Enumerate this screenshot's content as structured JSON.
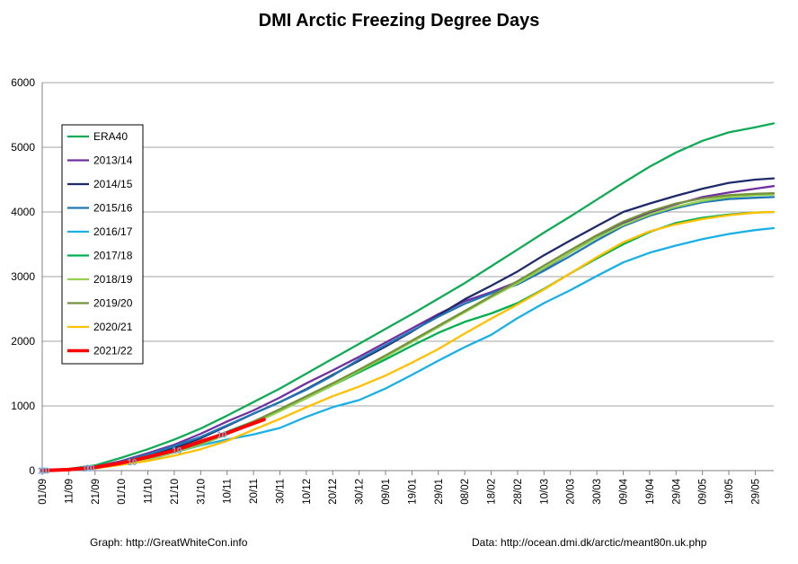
{
  "chart_data": {
    "type": "line",
    "title": "DMI Arctic Freezing Degree Days",
    "xlabel": "",
    "ylabel": "",
    "ylim": [
      0,
      6000
    ],
    "yticks": [
      0,
      1000,
      2000,
      3000,
      4000,
      5000,
      6000
    ],
    "xlim": [
      0,
      277
    ],
    "xtick_labels": [
      "01/09",
      "11/09",
      "21/09",
      "01/10",
      "11/10",
      "21/10",
      "31/10",
      "10/11",
      "20/11",
      "30/11",
      "10/12",
      "20/12",
      "30/12",
      "09/01",
      "19/01",
      "29/01",
      "08/02",
      "18/02",
      "28/02",
      "10/03",
      "20/03",
      "30/03",
      "09/04",
      "19/04",
      "29/04",
      "09/05",
      "19/05",
      "29/05"
    ],
    "xtick_positions": [
      0,
      10,
      20,
      30,
      40,
      50,
      60,
      70,
      80,
      90,
      100,
      110,
      120,
      130,
      140,
      150,
      160,
      170,
      180,
      190,
      200,
      210,
      220,
      230,
      240,
      250,
      260,
      270
    ],
    "grid": "horizontal",
    "legend_position": "left",
    "series": [
      {
        "name": "ERA40",
        "color": "#11aa55",
        "width": 2.3,
        "x": [
          0,
          10,
          20,
          30,
          40,
          50,
          60,
          70,
          80,
          90,
          100,
          110,
          120,
          130,
          140,
          150,
          160,
          170,
          180,
          190,
          200,
          210,
          220,
          230,
          240,
          250,
          260,
          270,
          277
        ],
        "y": [
          5,
          25,
          80,
          200,
          330,
          480,
          650,
          850,
          1060,
          1270,
          1500,
          1730,
          1960,
          2190,
          2420,
          2660,
          2900,
          3160,
          3420,
          3680,
          3930,
          4190,
          4450,
          4700,
          4920,
          5100,
          5230,
          5310,
          5370
        ]
      },
      {
        "name": "2013/14",
        "color": "#7030a0",
        "width": 2.3,
        "x": [
          0,
          10,
          20,
          30,
          40,
          50,
          60,
          70,
          80,
          90,
          100,
          110,
          120,
          130,
          140,
          150,
          160,
          170,
          180,
          190,
          200,
          210,
          220,
          230,
          240,
          250,
          260,
          270,
          277
        ],
        "y": [
          0,
          15,
          60,
          150,
          270,
          400,
          570,
          760,
          930,
          1130,
          1350,
          1550,
          1760,
          1980,
          2200,
          2420,
          2620,
          2760,
          2920,
          3120,
          3370,
          3610,
          3820,
          3990,
          4120,
          4230,
          4300,
          4360,
          4400
        ]
      },
      {
        "name": "2014/15",
        "color": "#1f2a6a",
        "width": 2.3,
        "x": [
          0,
          10,
          20,
          30,
          40,
          50,
          60,
          70,
          80,
          90,
          100,
          110,
          120,
          130,
          140,
          150,
          160,
          170,
          180,
          190,
          200,
          210,
          220,
          230,
          240,
          250,
          260,
          270,
          277
        ],
        "y": [
          0,
          10,
          45,
          120,
          220,
          350,
          500,
          690,
          880,
          1060,
          1260,
          1480,
          1700,
          1920,
          2150,
          2400,
          2650,
          2860,
          3080,
          3330,
          3560,
          3780,
          4000,
          4130,
          4250,
          4360,
          4450,
          4500,
          4520
        ]
      },
      {
        "name": "2015/16",
        "color": "#1f77b4",
        "width": 2.3,
        "x": [
          0,
          10,
          20,
          30,
          40,
          50,
          60,
          70,
          80,
          90,
          100,
          110,
          120,
          130,
          140,
          150,
          160,
          170,
          180,
          190,
          200,
          210,
          220,
          230,
          240,
          250,
          260,
          270,
          277
        ],
        "y": [
          0,
          12,
          50,
          140,
          250,
          380,
          520,
          700,
          880,
          1060,
          1250,
          1470,
          1720,
          1940,
          2160,
          2380,
          2580,
          2740,
          2880,
          3090,
          3320,
          3560,
          3780,
          3940,
          4060,
          4150,
          4200,
          4220,
          4230
        ]
      },
      {
        "name": "2016/17",
        "color": "#1ab0e6",
        "width": 2.3,
        "x": [
          0,
          10,
          20,
          30,
          40,
          50,
          60,
          70,
          80,
          90,
          100,
          110,
          120,
          130,
          140,
          150,
          160,
          170,
          180,
          190,
          200,
          210,
          220,
          230,
          240,
          250,
          260,
          270,
          277
        ],
        "y": [
          0,
          8,
          35,
          90,
          170,
          280,
          390,
          480,
          560,
          660,
          830,
          980,
          1090,
          1270,
          1480,
          1700,
          1910,
          2100,
          2360,
          2590,
          2790,
          3010,
          3220,
          3370,
          3480,
          3580,
          3660,
          3720,
          3750
        ]
      },
      {
        "name": "2017/18",
        "color": "#00b050",
        "width": 2.3,
        "x": [
          0,
          10,
          20,
          30,
          40,
          50,
          60,
          70,
          80,
          90,
          100,
          110,
          120,
          130,
          140,
          150,
          160,
          170,
          180,
          190,
          200,
          210,
          220,
          230,
          240,
          250,
          260,
          270,
          277
        ],
        "y": [
          0,
          10,
          40,
          110,
          200,
          310,
          450,
          600,
          760,
          930,
          1120,
          1320,
          1520,
          1720,
          1930,
          2130,
          2300,
          2430,
          2590,
          2810,
          3050,
          3280,
          3500,
          3690,
          3830,
          3910,
          3960,
          3990,
          4000
        ]
      },
      {
        "name": "2018/19",
        "color": "#92d050",
        "width": 2.3,
        "x": [
          0,
          10,
          20,
          30,
          40,
          50,
          60,
          70,
          80,
          90,
          100,
          110,
          120,
          130,
          140,
          150,
          160,
          170,
          180,
          190,
          200,
          210,
          220,
          230,
          240,
          250,
          260,
          270,
          277
        ],
        "y": [
          0,
          8,
          40,
          100,
          180,
          280,
          400,
          560,
          730,
          920,
          1120,
          1320,
          1540,
          1760,
          1990,
          2220,
          2450,
          2680,
          2900,
          3130,
          3370,
          3600,
          3800,
          3960,
          4080,
          4170,
          4230,
          4260,
          4270
        ]
      },
      {
        "name": "2019/20",
        "color": "#76923c",
        "width": 2.3,
        "x": [
          0,
          10,
          20,
          30,
          40,
          50,
          60,
          70,
          80,
          90,
          100,
          110,
          120,
          130,
          140,
          150,
          160,
          170,
          180,
          190,
          200,
          210,
          220,
          230,
          240,
          250,
          260,
          270,
          277
        ],
        "y": [
          0,
          10,
          40,
          110,
          200,
          300,
          420,
          580,
          760,
          950,
          1150,
          1350,
          1560,
          1780,
          2010,
          2240,
          2470,
          2700,
          2930,
          3170,
          3410,
          3640,
          3850,
          4010,
          4130,
          4210,
          4260,
          4280,
          4290
        ]
      },
      {
        "name": "2020/21",
        "color": "#ffc000",
        "width": 2.3,
        "x": [
          0,
          10,
          20,
          30,
          40,
          50,
          60,
          70,
          80,
          90,
          100,
          110,
          120,
          130,
          140,
          150,
          160,
          170,
          180,
          190,
          200,
          210,
          220,
          230,
          240,
          250,
          260,
          270,
          277
        ],
        "y": [
          0,
          8,
          35,
          90,
          150,
          230,
          330,
          460,
          630,
          800,
          980,
          1150,
          1300,
          1470,
          1670,
          1880,
          2120,
          2350,
          2570,
          2800,
          3050,
          3300,
          3530,
          3700,
          3810,
          3890,
          3950,
          3990,
          4000
        ]
      },
      {
        "name": "2021/22",
        "color": "#ff0000",
        "width": 4,
        "x": [
          0,
          10,
          20,
          30,
          40,
          50,
          60,
          70,
          80,
          84
        ],
        "y": [
          0,
          15,
          50,
          120,
          210,
          310,
          450,
          580,
          730,
          790
        ]
      }
    ],
    "markers": {
      "label": "10",
      "color": "#7aa7d4",
      "x": [
        0,
        1,
        17,
        18,
        34,
        51,
        68
      ],
      "y": [
        5,
        6,
        45,
        50,
        140,
        320,
        560
      ]
    }
  },
  "footer": {
    "left": "Graph: http://GreatWhiteCon.info",
    "right": "Data: http://ocean.dmi.dk/arctic/meant80n.uk.php"
  }
}
